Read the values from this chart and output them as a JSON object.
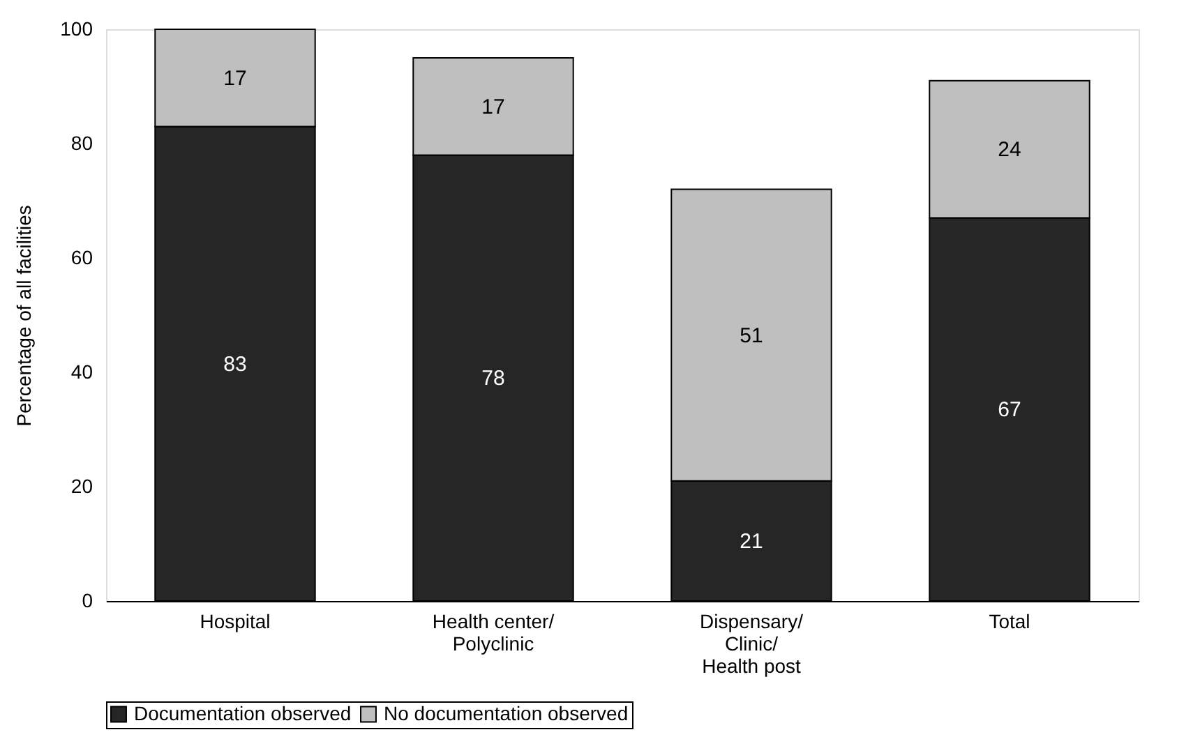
{
  "chart_data": {
    "type": "bar",
    "stacked": true,
    "ylabel": "Percentage of all facilities",
    "categories": [
      "Hospital",
      "Health center/\nPolyclinic",
      "Dispensary/\nClinic/\nHealth post",
      "Total"
    ],
    "series": [
      {
        "name": "Documentation observed",
        "color": "#262626",
        "values": [
          83,
          78,
          21,
          67
        ]
      },
      {
        "name": "No documentation observed",
        "color": "#bfbfbf",
        "values": [
          17,
          17,
          51,
          24
        ]
      }
    ],
    "ylim": [
      0,
      100
    ],
    "yticks": [
      0,
      20,
      40,
      60,
      80,
      100
    ],
    "grid": false,
    "legend": "bottom",
    "data_labels": true
  }
}
